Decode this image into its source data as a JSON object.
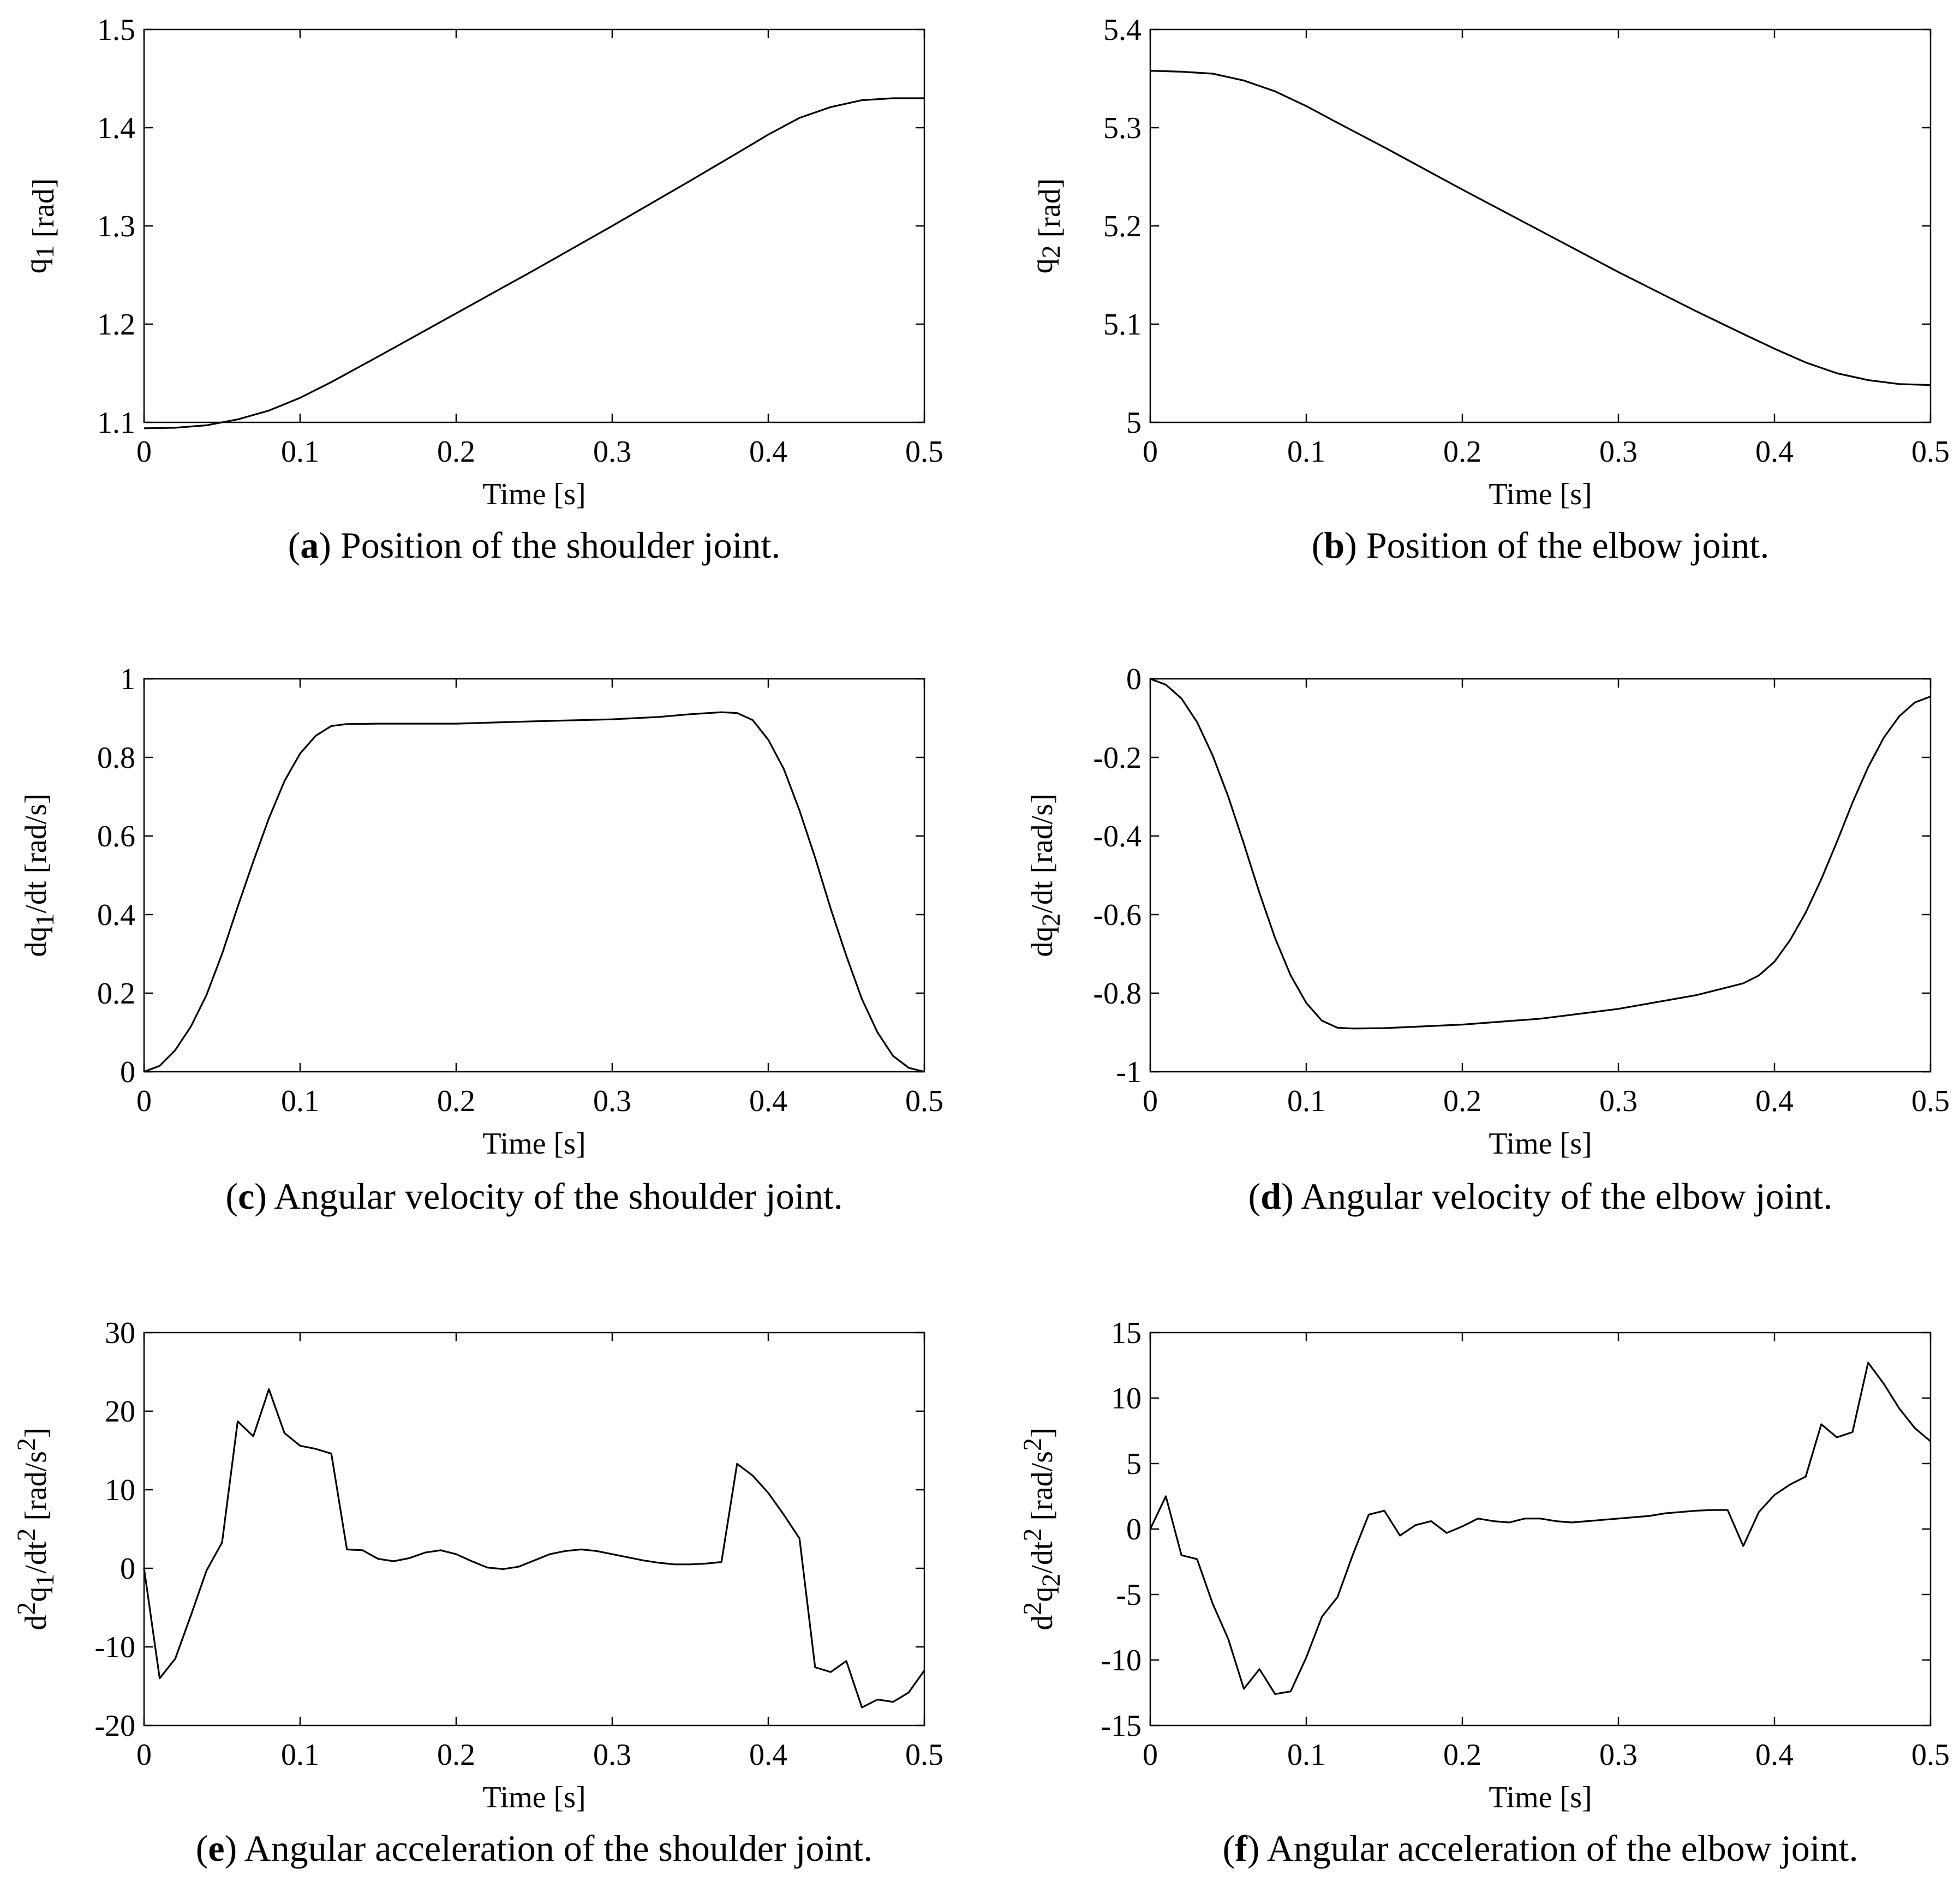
{
  "chart_data": [
    {
      "type": "line",
      "caption": {
        "letter": "a",
        "text": "Position of the shoulder joint."
      },
      "xlabel": "Time [s]",
      "ylabel": {
        "pre": "",
        "base1": "q",
        "sup1": "",
        "sub1": "1",
        "mid": "",
        "sup2": "",
        "post": " [rad]",
        "sup3": ""
      },
      "xlim": [
        0,
        0.5
      ],
      "ylim": [
        1.1,
        1.5
      ],
      "xticks": [
        0,
        0.1,
        0.2,
        0.3,
        0.4,
        0.5
      ],
      "xticklabels": [
        "0",
        "0.1",
        "0.2",
        "0.3",
        "0.4",
        "0.5"
      ],
      "yticks": [
        1.1,
        1.2,
        1.3,
        1.4,
        1.5
      ],
      "yticklabels": [
        "1.1",
        "1.2",
        "1.3",
        "1.4",
        "1.5"
      ],
      "x": [
        0,
        0.02,
        0.04,
        0.06,
        0.08,
        0.1,
        0.12,
        0.15,
        0.2,
        0.25,
        0.3,
        0.35,
        0.38,
        0.4,
        0.42,
        0.44,
        0.46,
        0.48,
        0.5
      ],
      "y": [
        1.094,
        1.0945,
        1.097,
        1.103,
        1.112,
        1.125,
        1.141,
        1.167,
        1.211,
        1.255,
        1.3,
        1.346,
        1.374,
        1.393,
        1.41,
        1.421,
        1.428,
        1.43,
        1.43
      ]
    },
    {
      "type": "line",
      "caption": {
        "letter": "b",
        "text": "Position of the elbow joint."
      },
      "xlabel": "Time [s]",
      "ylabel": {
        "pre": "",
        "base1": "q",
        "sup1": "",
        "sub1": "2",
        "mid": "",
        "sup2": "",
        "post": " [rad]",
        "sup3": ""
      },
      "xlim": [
        0,
        0.5
      ],
      "ylim": [
        5,
        5.4
      ],
      "xticks": [
        0,
        0.1,
        0.2,
        0.3,
        0.4,
        0.5
      ],
      "xticklabels": [
        "0",
        "0.1",
        "0.2",
        "0.3",
        "0.4",
        "0.5"
      ],
      "yticks": [
        5,
        5.1,
        5.2,
        5.3,
        5.4
      ],
      "yticklabels": [
        "5",
        "5.1",
        "5.2",
        "5.3",
        "5.4"
      ],
      "x": [
        0,
        0.02,
        0.04,
        0.06,
        0.08,
        0.1,
        0.12,
        0.15,
        0.2,
        0.25,
        0.3,
        0.35,
        0.38,
        0.4,
        0.42,
        0.44,
        0.46,
        0.48,
        0.5
      ],
      "y": [
        5.358,
        5.357,
        5.355,
        5.348,
        5.337,
        5.322,
        5.305,
        5.28,
        5.237,
        5.195,
        5.153,
        5.113,
        5.09,
        5.075,
        5.061,
        5.05,
        5.043,
        5.039,
        5.038
      ]
    },
    {
      "type": "line",
      "caption": {
        "letter": "c",
        "text": "Angular velocity of the shoulder joint."
      },
      "xlabel": "Time [s]",
      "ylabel": {
        "pre": "d",
        "base1": "q",
        "sup1": "",
        "sub1": "1",
        "mid": "/dt",
        "sup2": "",
        "post": " [rad/s]",
        "sup3": ""
      },
      "xlim": [
        0,
        0.5
      ],
      "ylim": [
        0,
        1
      ],
      "xticks": [
        0,
        0.1,
        0.2,
        0.3,
        0.4,
        0.5
      ],
      "xticklabels": [
        "0",
        "0.1",
        "0.2",
        "0.3",
        "0.4",
        "0.5"
      ],
      "yticks": [
        0,
        0.2,
        0.4,
        0.6,
        0.8,
        1
      ],
      "yticklabels": [
        "0",
        "0.2",
        "0.4",
        "0.6",
        "0.8",
        "1"
      ],
      "x": [
        0,
        0.01,
        0.02,
        0.03,
        0.04,
        0.05,
        0.06,
        0.07,
        0.08,
        0.09,
        0.1,
        0.11,
        0.12,
        0.13,
        0.15,
        0.2,
        0.25,
        0.3,
        0.33,
        0.35,
        0.37,
        0.38,
        0.39,
        0.4,
        0.41,
        0.42,
        0.43,
        0.44,
        0.45,
        0.46,
        0.47,
        0.48,
        0.49,
        0.5
      ],
      "y": [
        0,
        0.015,
        0.055,
        0.115,
        0.195,
        0.3,
        0.42,
        0.535,
        0.645,
        0.74,
        0.81,
        0.855,
        0.88,
        0.885,
        0.886,
        0.886,
        0.892,
        0.897,
        0.903,
        0.91,
        0.915,
        0.913,
        0.895,
        0.845,
        0.77,
        0.665,
        0.545,
        0.415,
        0.295,
        0.185,
        0.1,
        0.04,
        0.01,
        0
      ]
    },
    {
      "type": "line",
      "caption": {
        "letter": "d",
        "text": "Angular velocity of the elbow joint."
      },
      "xlabel": "Time [s]",
      "ylabel": {
        "pre": "d",
        "base1": "q",
        "sup1": "",
        "sub1": "2",
        "mid": "/dt",
        "sup2": "",
        "post": " [rad/s]",
        "sup3": ""
      },
      "xlim": [
        0,
        0.5
      ],
      "ylim": [
        -1,
        0
      ],
      "xticks": [
        0,
        0.1,
        0.2,
        0.3,
        0.4,
        0.5
      ],
      "xticklabels": [
        "0",
        "0.1",
        "0.2",
        "0.3",
        "0.4",
        "0.5"
      ],
      "yticks": [
        -1,
        -0.8,
        -0.6,
        -0.4,
        -0.2,
        0
      ],
      "yticklabels": [
        "-1",
        "-0.8",
        "-0.6",
        "-0.4",
        "-0.2",
        "0"
      ],
      "x": [
        0,
        0.01,
        0.02,
        0.03,
        0.04,
        0.05,
        0.06,
        0.07,
        0.08,
        0.09,
        0.1,
        0.11,
        0.12,
        0.13,
        0.15,
        0.2,
        0.25,
        0.3,
        0.35,
        0.38,
        0.39,
        0.4,
        0.41,
        0.42,
        0.43,
        0.44,
        0.45,
        0.46,
        0.47,
        0.48,
        0.49,
        0.5
      ],
      "y": [
        0,
        -0.015,
        -0.05,
        -0.11,
        -0.195,
        -0.3,
        -0.42,
        -0.545,
        -0.66,
        -0.755,
        -0.825,
        -0.87,
        -0.888,
        -0.89,
        -0.889,
        -0.88,
        -0.865,
        -0.84,
        -0.805,
        -0.775,
        -0.755,
        -0.72,
        -0.665,
        -0.595,
        -0.51,
        -0.415,
        -0.315,
        -0.225,
        -0.15,
        -0.095,
        -0.06,
        -0.045
      ]
    },
    {
      "type": "line",
      "caption": {
        "letter": "e",
        "text": "Angular acceleration of the shoulder joint."
      },
      "xlabel": "Time [s]",
      "ylabel": {
        "pre": "d",
        "base1": "q",
        "sup1": "2",
        "sub1": "1",
        "mid": "/dt",
        "sup2": "2",
        "post": " [rad/s",
        "sup3": "2"
      },
      "xlim": [
        0,
        0.5
      ],
      "ylim": [
        -20,
        30
      ],
      "xticks": [
        0,
        0.1,
        0.2,
        0.3,
        0.4,
        0.5
      ],
      "xticklabels": [
        "0",
        "0.1",
        "0.2",
        "0.3",
        "0.4",
        "0.5"
      ],
      "yticks": [
        -20,
        -10,
        0,
        10,
        20,
        30
      ],
      "yticklabels": [
        "-20",
        "-10",
        "0",
        "10",
        "20",
        "30"
      ],
      "x": [
        0,
        0.01,
        0.02,
        0.03,
        0.04,
        0.05,
        0.06,
        0.07,
        0.08,
        0.09,
        0.1,
        0.11,
        0.12,
        0.13,
        0.14,
        0.15,
        0.16,
        0.17,
        0.18,
        0.19,
        0.2,
        0.21,
        0.22,
        0.23,
        0.24,
        0.25,
        0.26,
        0.27,
        0.28,
        0.29,
        0.3,
        0.31,
        0.32,
        0.33,
        0.34,
        0.35,
        0.36,
        0.37,
        0.38,
        0.39,
        0.4,
        0.41,
        0.42,
        0.43,
        0.44,
        0.45,
        0.46,
        0.47,
        0.48,
        0.49,
        0.5
      ],
      "y": [
        0,
        -14,
        -11.5,
        -6,
        -0.3,
        3.3,
        18.7,
        16.8,
        22.8,
        17.2,
        15.6,
        15.2,
        14.6,
        2.4,
        2.3,
        1.2,
        0.9,
        1.3,
        2,
        2.3,
        1.8,
        0.9,
        0.1,
        -0.1,
        0.2,
        1,
        1.8,
        2.2,
        2.4,
        2.2,
        1.8,
        1.4,
        1,
        0.7,
        0.5,
        0.5,
        0.6,
        0.8,
        13.3,
        11.8,
        9.6,
        6.8,
        3.8,
        -12.6,
        -13.2,
        -11.8,
        -17.7,
        -16.7,
        -17,
        -15.8,
        -13
      ]
    },
    {
      "type": "line",
      "caption": {
        "letter": "f",
        "text": "Angular acceleration of the elbow joint."
      },
      "xlabel": "Time [s]",
      "ylabel": {
        "pre": "d",
        "base1": "q",
        "sup1": "2",
        "sub1": "2",
        "mid": "/dt",
        "sup2": "2",
        "post": " [rad/s",
        "sup3": "2"
      },
      "xlim": [
        0,
        0.5
      ],
      "ylim": [
        -15,
        15
      ],
      "xticks": [
        0,
        0.1,
        0.2,
        0.3,
        0.4,
        0.5
      ],
      "xticklabels": [
        "0",
        "0.1",
        "0.2",
        "0.3",
        "0.4",
        "0.5"
      ],
      "yticks": [
        -15,
        -10,
        -5,
        0,
        5,
        10,
        15
      ],
      "yticklabels": [
        "-15",
        "-10",
        "-5",
        "0",
        "5",
        "10",
        "15"
      ],
      "x": [
        0,
        0.01,
        0.02,
        0.03,
        0.04,
        0.05,
        0.06,
        0.07,
        0.08,
        0.09,
        0.1,
        0.11,
        0.12,
        0.13,
        0.14,
        0.15,
        0.16,
        0.17,
        0.18,
        0.19,
        0.2,
        0.21,
        0.22,
        0.23,
        0.24,
        0.25,
        0.26,
        0.27,
        0.28,
        0.29,
        0.3,
        0.31,
        0.32,
        0.33,
        0.34,
        0.35,
        0.36,
        0.37,
        0.38,
        0.39,
        0.4,
        0.41,
        0.42,
        0.43,
        0.44,
        0.45,
        0.46,
        0.47,
        0.48,
        0.49,
        0.5
      ],
      "y": [
        0,
        2.5,
        -2,
        -2.3,
        -5.7,
        -8.4,
        -12.2,
        -10.7,
        -12.6,
        -12.4,
        -9.8,
        -6.7,
        -5.2,
        -1.9,
        1.1,
        1.4,
        -0.5,
        0.3,
        0.6,
        -0.3,
        0.2,
        0.8,
        0.6,
        0.5,
        0.8,
        0.8,
        0.6,
        0.5,
        0.6,
        0.7,
        0.8,
        0.9,
        1.0,
        1.2,
        1.3,
        1.4,
        1.45,
        1.45,
        -1.3,
        1.3,
        2.6,
        3.4,
        4,
        8,
        7,
        7.4,
        12.7,
        11.1,
        9.2,
        7.7,
        6.7
      ]
    }
  ]
}
